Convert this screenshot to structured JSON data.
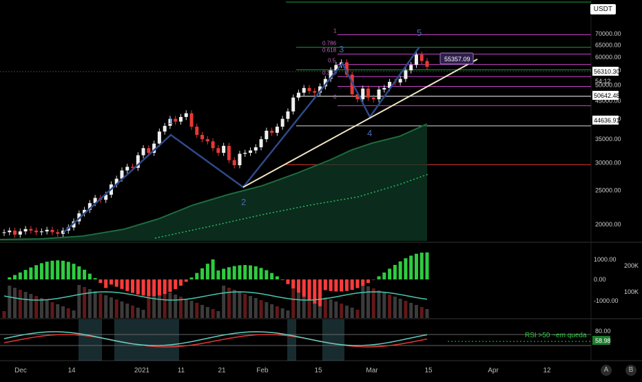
{
  "scale": {
    "currency_badge": "USDT"
  },
  "axis": {
    "price_labels": [
      "70000.00",
      "65000.00",
      "60000.00",
      "55000.00",
      "50000.00",
      "45000.00",
      "40000.00",
      "35000.00",
      "30000.00",
      "25000.00",
      "20000.00"
    ],
    "price_values": [
      70000,
      65000,
      60000,
      55000,
      50000,
      45000,
      40000,
      35000,
      30000,
      25000,
      20000
    ],
    "macd_labels": [
      "1000.00",
      "0.00",
      "-1000.00"
    ],
    "volume_labels": [
      "200K",
      "100K"
    ],
    "rsi_labels": [
      "80.00"
    ],
    "x_labels": [
      "Dec",
      "14",
      "2021",
      "11",
      "21",
      "Feb",
      "15",
      "Mar",
      "15",
      "Apr",
      "12"
    ]
  },
  "price_boxes": {
    "current_price": "56310.30",
    "countdown": "54:12",
    "level_a": "50642.48",
    "level_b": "44636.91",
    "tooltip": "55357.09"
  },
  "fib_labels": [
    "1",
    "0.786",
    "0.618",
    "0.5",
    "0.382",
    "0"
  ],
  "wave_labels": [
    "1",
    "2",
    "3",
    "4",
    "5"
  ],
  "rsi": {
    "annotation": "RSI >50 ~em queda",
    "value": "58.98"
  },
  "axis_buttons": {
    "auto": "A",
    "bar": "B"
  },
  "colors": {
    "up": "#22c55e",
    "down": "#ef4444",
    "fib": "#cc44cc",
    "ma": "#1e6b3c",
    "wave": "#2e4a8a",
    "trend": "#f0e6c0",
    "rsi": "#5fd0c0",
    "rsi_sig": "#e53935",
    "macd_line": "#48c9b0",
    "value_box": "#1b7d2e"
  },
  "chart_data": {
    "type": "candlestick",
    "y_scale": "price",
    "ylim": [
      16000,
      71000
    ],
    "candles_approx_close": [
      19000,
      19200,
      18700,
      19100,
      19400,
      19200,
      19000,
      19100,
      19300,
      19000,
      18800,
      19200,
      19600,
      20400,
      21500,
      22000,
      23000,
      23800,
      23500,
      24300,
      26000,
      27000,
      28500,
      29200,
      29000,
      31500,
      33000,
      32000,
      34000,
      36800,
      38200,
      40000,
      39300,
      40500,
      41500,
      38000,
      36000,
      35000,
      34500,
      33000,
      32000,
      33500,
      30500,
      29500,
      31800,
      32000,
      32500,
      33200,
      35000,
      37000,
      36500,
      38000,
      40000,
      42000,
      46000,
      47500,
      49000,
      48000,
      47500,
      49500,
      52000,
      55000,
      57000,
      58000,
      53500,
      47000,
      45500,
      48800,
      46000,
      45500,
      48500,
      49000,
      51000,
      50800,
      52000,
      55000,
      57000,
      61000,
      58500,
      56300
    ]
  }
}
